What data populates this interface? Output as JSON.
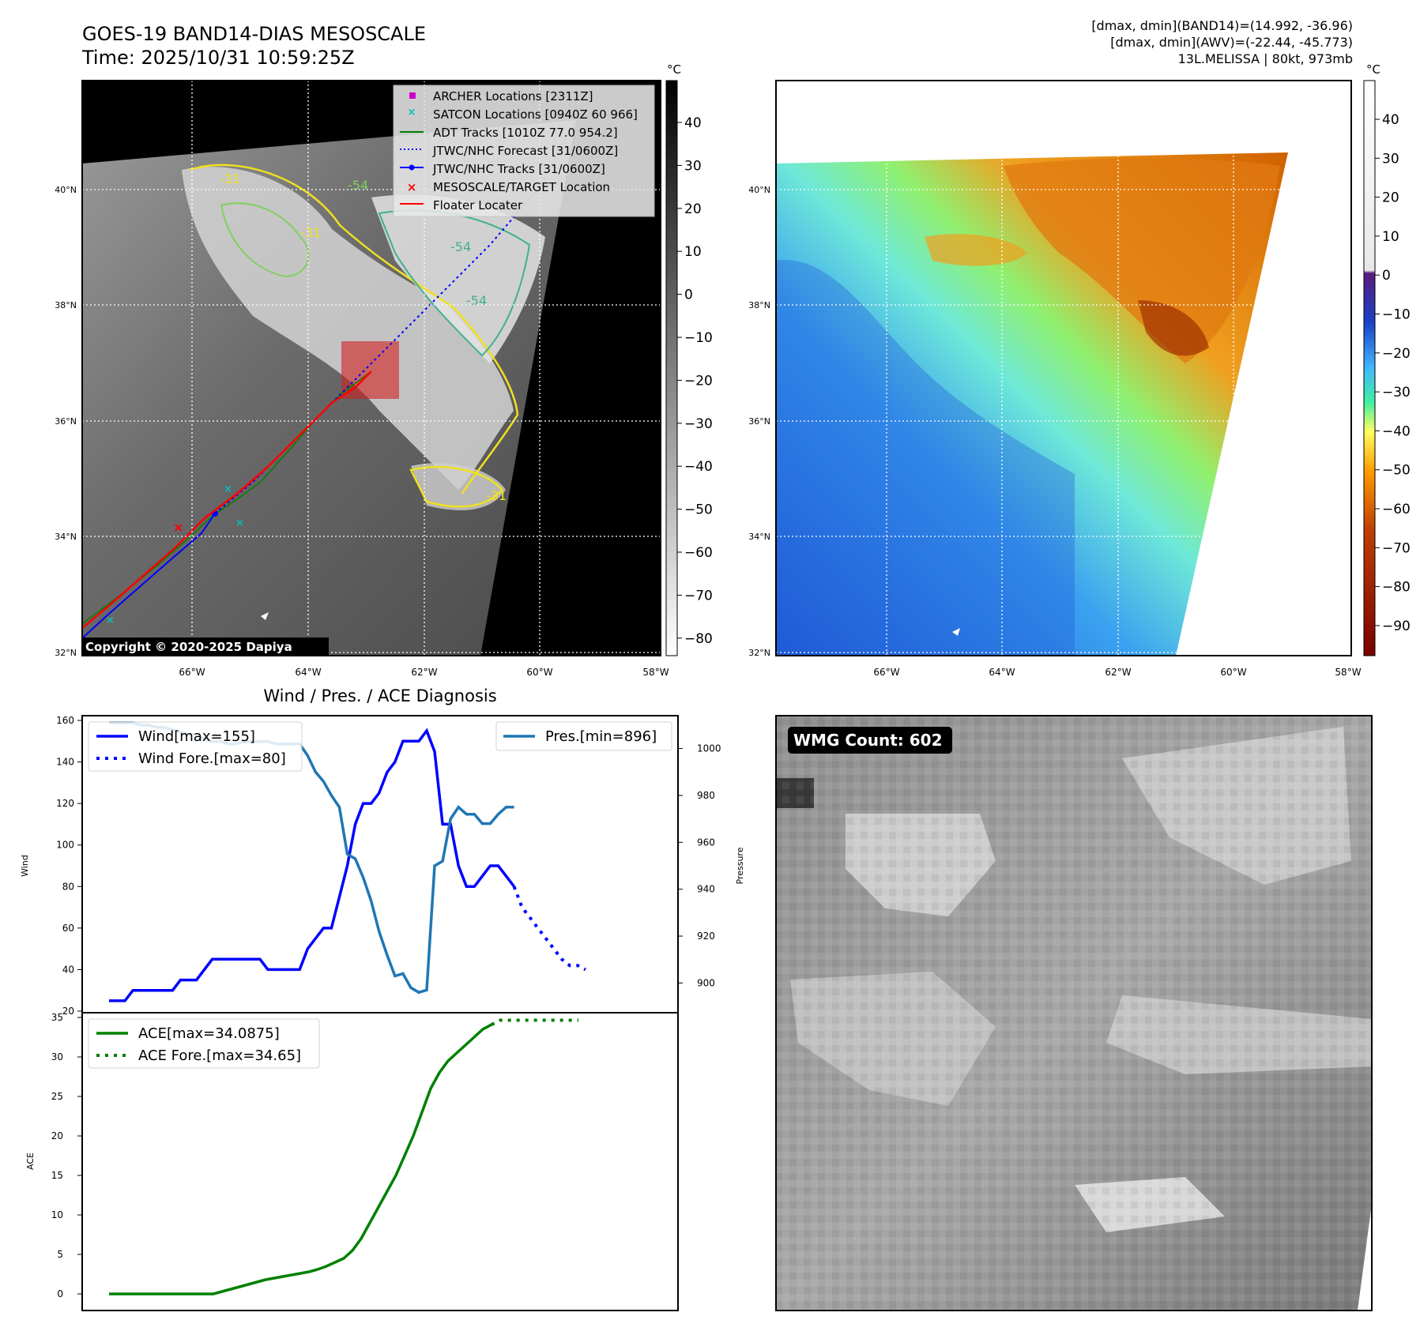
{
  "header": {
    "title": "GOES-19 BAND14-DIAS MESOSCALE",
    "time": "Time: 2025/10/31 10:59:25Z",
    "info_line1": "[dmax, dmin](BAND14)=(14.992, -36.96)",
    "info_line2": "[dmax, dmin](AWV)=(-22.44, -45.773)",
    "info_line3": "13L.MELISSA | 80kt, 973mb"
  },
  "maps": {
    "lat_labels": [
      "40°N",
      "38°N",
      "36°N",
      "34°N",
      "32°N"
    ],
    "lon_labels": [
      "66°W",
      "64°W",
      "62°W",
      "60°W",
      "58°W"
    ],
    "copyright": "Copyright © 2020-2025 Dapiya",
    "contour_labels": [
      "-31",
      "-54",
      "-31",
      "-54",
      "-54",
      "-31"
    ]
  },
  "legend": {
    "items": [
      {
        "label": "ARCHER Locations [2311Z]",
        "color": "#cc00cc"
      },
      {
        "label": "SATCON Locations [0940Z 60 966]",
        "color": "#00bfbf"
      },
      {
        "label": "ADT Tracks [1010Z 77.0 954.2]",
        "color": "#008000"
      },
      {
        "label": "JTWC/NHC Forecast [31/0600Z]",
        "color": "#0000ff"
      },
      {
        "label": "JTWC/NHC Tracks [31/0600Z]",
        "color": "#0000ff"
      },
      {
        "label": "MESOSCALE/TARGET Location",
        "color": "#ff0000"
      },
      {
        "label": "Floater Locater",
        "color": "#ff0000"
      }
    ]
  },
  "colorbar_left": {
    "unit": "°C",
    "ticks": [
      "40",
      "30",
      "20",
      "10",
      "0",
      "−10",
      "−20",
      "−30",
      "−40",
      "−50",
      "−60",
      "−70",
      "−80"
    ]
  },
  "colorbar_right": {
    "unit": "°C",
    "ticks": [
      "40",
      "30",
      "20",
      "10",
      "0",
      "−10",
      "−20",
      "−30",
      "−40",
      "−50",
      "−60",
      "−70",
      "−80",
      "−90"
    ]
  },
  "wmg": {
    "label": "WMG Count: 602"
  },
  "chart_data": [
    {
      "type": "line",
      "title": "Wind / Pres. / ACE Diagnosis",
      "ylabel": "Wind",
      "y2label": "Pressure",
      "ylim": [
        20,
        160
      ],
      "y2lim": [
        888,
        1012
      ],
      "yticks": [
        20,
        40,
        60,
        80,
        100,
        120,
        140,
        160
      ],
      "y2ticks": [
        900,
        920,
        940,
        960,
        980,
        1000
      ],
      "series": [
        {
          "name": "Wind[max=155]",
          "color": "#0000ff",
          "style": "solid",
          "axis": "left",
          "values": [
            25,
            25,
            25,
            30,
            30,
            30,
            30,
            30,
            30,
            35,
            35,
            35,
            40,
            45,
            45,
            45,
            45,
            45,
            45,
            45,
            40,
            40,
            40,
            40,
            40,
            50,
            55,
            60,
            60,
            75,
            90,
            110,
            120,
            120,
            125,
            135,
            140,
            150,
            150,
            150,
            155,
            145,
            110,
            110,
            90,
            80,
            80,
            85,
            90,
            90,
            85,
            80
          ]
        },
        {
          "name": "Wind Fore.[max=80]",
          "color": "#0000ff",
          "style": "dotted",
          "axis": "left",
          "start_index": 51,
          "values": [
            80,
            70,
            65,
            60,
            55,
            50,
            45,
            42,
            42,
            40
          ]
        },
        {
          "name": "Pres.[min=896]",
          "color": "#1f77b4",
          "style": "solid",
          "axis": "right",
          "values": [
            1011,
            1011,
            1011,
            1011,
            1010,
            1010,
            1009,
            1009,
            1008,
            1007,
            1006,
            1006,
            1004,
            1003,
            1003,
            1002,
            1002,
            1003,
            1003,
            1003,
            1003,
            1002,
            1002,
            1002,
            1002,
            997,
            990,
            986,
            980,
            975,
            955,
            953,
            945,
            935,
            922,
            912,
            903,
            904,
            898,
            896,
            897,
            950,
            952,
            970,
            975,
            972,
            972,
            968,
            968,
            972,
            975,
            975
          ]
        },
        {
          "name": "ACE[max=34.0875]",
          "color": "#008000",
          "style": "solid",
          "axis": "ace",
          "values": [
            0,
            0,
            0,
            0,
            0,
            0,
            0,
            0,
            0,
            0,
            0,
            0,
            0,
            0.3,
            0.6,
            0.9,
            1.2,
            1.5,
            1.8,
            2.0,
            2.2,
            2.4,
            2.6,
            2.8,
            3.1,
            3.5,
            4.0,
            4.5,
            5.5,
            7.0,
            9.0,
            11.0,
            13.0,
            15.0,
            17.5,
            20.0,
            23.0,
            26.0,
            28.0,
            29.5,
            30.5,
            31.5,
            32.5,
            33.5,
            34.0875
          ]
        },
        {
          "name": "ACE Fore.[max=34.65]",
          "color": "#008000",
          "style": "dotted",
          "axis": "ace",
          "start_index": 44,
          "values": [
            34.0875,
            34.65,
            34.65,
            34.65,
            34.65,
            34.65,
            34.65,
            34.65,
            34.65,
            34.65,
            34.65
          ]
        }
      ]
    },
    {
      "type": "line",
      "ylabel": "ACE",
      "ylim": [
        -1.5,
        35
      ],
      "yticks": [
        0,
        5,
        10,
        15,
        20,
        25,
        30,
        35
      ]
    }
  ]
}
